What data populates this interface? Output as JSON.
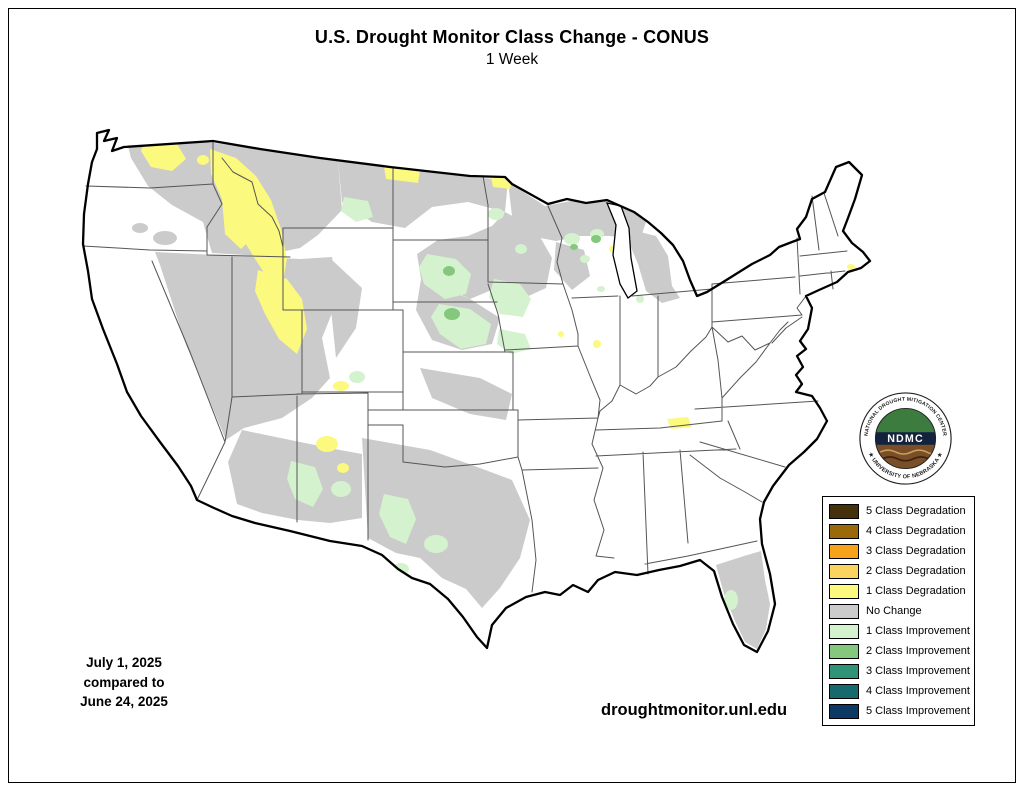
{
  "header": {
    "title": "U.S. Drought Monitor Class Change - CONUS",
    "subtitle": "1 Week"
  },
  "annotations": {
    "date_line1": "July 1, 2025",
    "date_line2": "compared to",
    "date_line3": "June 24, 2025",
    "url": "droughtmonitor.unl.edu"
  },
  "logo": {
    "arc_top": "NATIONAL DROUGHT MITIGATION CENTER",
    "acronym": "NDMC",
    "arc_bottom": "★ UNIVERSITY OF NEBRASKA ★"
  },
  "legend": {
    "items": [
      {
        "label": "5 Class Degradation",
        "color": "#44300a"
      },
      {
        "label": "4 Class Degradation",
        "color": "#9a6a0a"
      },
      {
        "label": "3 Class Degradation",
        "color": "#f6a31b"
      },
      {
        "label": "2 Class Degradation",
        "color": "#fbd45f"
      },
      {
        "label": "1 Class Degradation",
        "color": "#fcf97f"
      },
      {
        "label": "No Change",
        "color": "#cbcbcb"
      },
      {
        "label": "1 Class Improvement",
        "color": "#d4f2ce"
      },
      {
        "label": "2 Class Improvement",
        "color": "#84c87e"
      },
      {
        "label": "3 Class Improvement",
        "color": "#2e9377"
      },
      {
        "label": "4 Class Improvement",
        "color": "#166a6e"
      },
      {
        "label": "5 Class Improvement",
        "color": "#0d3a64"
      }
    ]
  },
  "map": {
    "region": "CONUS",
    "fills": {
      "no_change": "#cbcbcb",
      "degradation_1": "#fcf97f",
      "improvement_1": "#d4f2ce",
      "improvement_2": "#84c87e"
    },
    "strokes": {
      "state_border": "#555555",
      "outline": "#000000"
    }
  }
}
